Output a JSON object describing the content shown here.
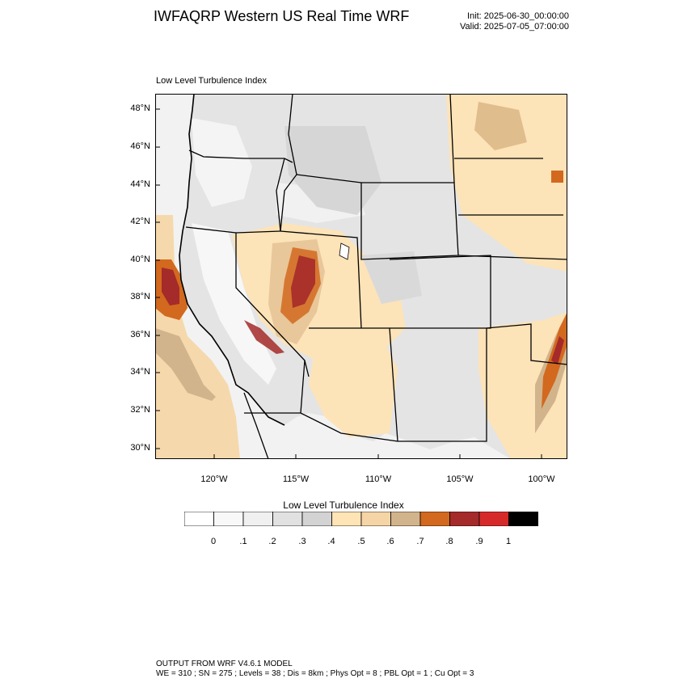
{
  "header": {
    "title": "IWFAQRP Western US Real Time WRF",
    "init": "Init: 2025-06-30_00:00:00",
    "valid": "Valid: 2025-07-05_07:00:00"
  },
  "map": {
    "field_title": "Low Level Turbulence Index",
    "lat_labels": [
      "48°N",
      "46°N",
      "44°N",
      "42°N",
      "40°N",
      "38°N",
      "36°N",
      "34°N",
      "32°N",
      "30°N"
    ],
    "lon_labels": [
      "120°W",
      "115°W",
      "110°W",
      "105°W",
      "100°W"
    ],
    "colors": {
      "ocean": "#f0f0f0",
      "land_base": "#e6e6e6",
      "boundary": "#000000"
    }
  },
  "legend": {
    "title": "Low Level Turbulence Index",
    "tick_labels": [
      "0",
      ".1",
      ".2",
      ".3",
      ".4",
      ".5",
      ".6",
      ".7",
      ".8",
      ".9",
      "1"
    ],
    "colors": [
      "#ffffff",
      "#f8f8f8",
      "#f0f0f0",
      "#e1e1e1",
      "#d3d3d3",
      "#ffe4b5",
      "#f5d5a6",
      "#d2b48c",
      "#d2691e",
      "#a52a2a",
      "#d62a2a",
      "#000000"
    ]
  },
  "footer": {
    "line1": "OUTPUT FROM WRF V4.6.1 MODEL",
    "line2": "WE = 310 ; SN = 275 ; Levels = 38 ; Dis = 8km ; Phys Opt = 8 ; PBL Opt = 1 ; Cu Opt = 3"
  }
}
